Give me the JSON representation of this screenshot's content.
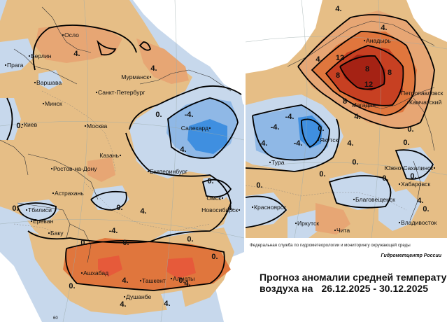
{
  "palette": {
    "strong_cold": "#3f8fe0",
    "cold": "#8fb8e6",
    "weak_cold": "#c7d8ec",
    "weak_warm": "#e6be86",
    "warm": "#e7a674",
    "hot": "#e0763d",
    "very_hot": "#c74022",
    "extreme_hot": "#a52214",
    "outside": "#ffffff"
  },
  "left_map": {
    "cities": [
      {
        "name": "Осло"
      },
      {
        "name": "Берлин"
      },
      {
        "name": "Прага"
      },
      {
        "name": "Варшава"
      },
      {
        "name": "Мурманск"
      },
      {
        "name": "Санкт-Петербург"
      },
      {
        "name": "Минск"
      },
      {
        "name": "Киев"
      },
      {
        "name": "Москва"
      },
      {
        "name": "Салехард"
      },
      {
        "name": "Казань"
      },
      {
        "name": "Екатеринбург"
      },
      {
        "name": "Ростов-на-Дону"
      },
      {
        "name": "Астрахань"
      },
      {
        "name": "Тбилиси"
      },
      {
        "name": "Ереван"
      },
      {
        "name": "Баку"
      },
      {
        "name": "Омск"
      },
      {
        "name": "Новосибирск"
      },
      {
        "name": "Ашхабад"
      },
      {
        "name": "Ташкент"
      },
      {
        "name": "Алматы"
      },
      {
        "name": "Душанбе"
      }
    ],
    "isoline_labels": [
      "4.",
      "0.",
      "0.",
      "-4.",
      "4.",
      "0.",
      "0.",
      "0.",
      "-4.",
      "0.",
      "0.",
      "0.",
      "0.",
      "0.",
      "4.",
      "4.",
      "4.",
      "4.",
      "4.",
      "4.",
      "4.",
      "0."
    ],
    "grid_label": "60"
  },
  "right_map": {
    "cities": [
      {
        "name": "Анадырь"
      },
      {
        "name": "Петропавловск"
      },
      {
        "name": "Камчатский"
      },
      {
        "name": "Магадан"
      },
      {
        "name": "Якутск"
      },
      {
        "name": "Тура"
      },
      {
        "name": "Южно-Сахалинск"
      },
      {
        "name": "Хабаровск"
      },
      {
        "name": "Благовещенск"
      },
      {
        "name": "Красноярск"
      },
      {
        "name": "Чита"
      },
      {
        "name": "Иркутск"
      },
      {
        "name": "Владивосток"
      }
    ],
    "isoline_labels": [
      "4.",
      "4.",
      "4.",
      "8",
      "12",
      "12",
      "8",
      "8",
      "8",
      "4.",
      "4.",
      "0.",
      "0.",
      "-4.",
      "-4.",
      "-4.",
      "-4.",
      "0.",
      "0.",
      "0.",
      "0.",
      "0.",
      "0.",
      "0.",
      "4."
    ]
  },
  "info": {
    "agency": "Федеральная служба по гидрометеорологии и мониторингу окружающей среды",
    "agency_short": "Гидрометцентр России",
    "title_line1": "Прогноз аномалии средней температуры",
    "title_line2_prefix": "воздуха на",
    "date_range": "26.12.2025 - 30.12.2025"
  }
}
